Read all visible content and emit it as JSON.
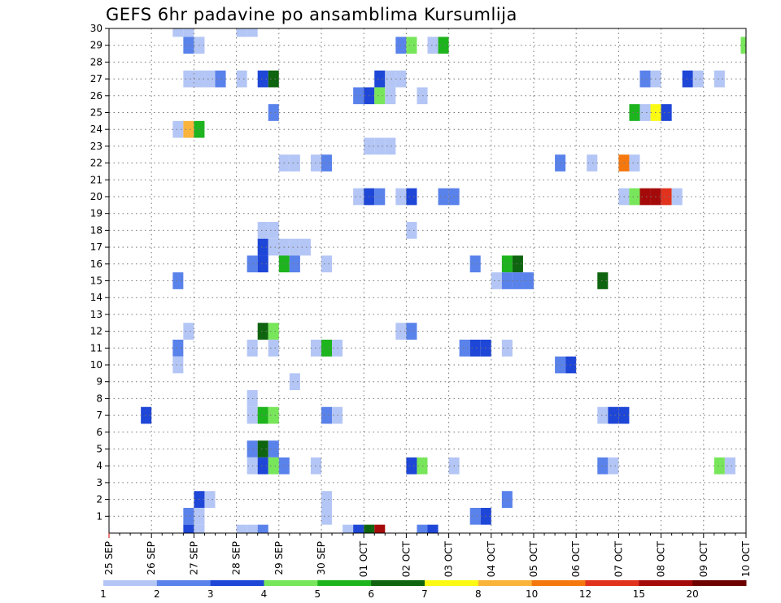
{
  "chart_data": {
    "type": "heatmap",
    "title": "GEFS 6hr padavine po ansamblima Kursumlija",
    "x_tick_labels": [
      "25 SEP",
      "26 SEP",
      "27 SEP",
      "28 SEP",
      "29 SEP",
      "30 SEP",
      "01 OCT",
      "02 OCT",
      "03 OCT",
      "04 OCT",
      "05 OCT",
      "06 OCT",
      "07 OCT",
      "08 OCT",
      "09 OCT",
      "10 OCT"
    ],
    "y_tick_labels": [
      "1",
      "2",
      "3",
      "4",
      "5",
      "6",
      "7",
      "8",
      "9",
      "10",
      "11",
      "12",
      "13",
      "14",
      "15",
      "16",
      "17",
      "18",
      "19",
      "20",
      "21",
      "22",
      "23",
      "24",
      "25",
      "26",
      "27",
      "28",
      "29",
      "30"
    ],
    "x_range": [
      0,
      60
    ],
    "y_range": [
      0,
      30
    ],
    "grid": true,
    "legend_position": "bottom",
    "colorbar": {
      "labels": [
        "1",
        "2",
        "3",
        "4",
        "5",
        "6",
        "7",
        "8",
        "10",
        "12",
        "15",
        "20"
      ],
      "colors": [
        "#b4c6f5",
        "#5a82eb",
        "#1e46d7",
        "#78e65a",
        "#1eb41e",
        "#0f640f",
        "#fafa14",
        "#fab43c",
        "#f5780f",
        "#e1321e",
        "#a50a0a",
        "#6e0000"
      ]
    },
    "cells": [
      [
        6.5,
        30,
        0
      ],
      [
        7.5,
        30,
        0
      ],
      [
        12.5,
        30,
        0
      ],
      [
        13.5,
        30,
        0
      ],
      [
        7.5,
        29,
        1
      ],
      [
        8.5,
        29,
        0
      ],
      [
        27.5,
        29,
        1
      ],
      [
        28.5,
        29,
        3
      ],
      [
        30.5,
        29,
        0
      ],
      [
        31.5,
        29,
        4
      ],
      [
        60,
        29,
        3
      ],
      [
        7.5,
        27,
        0
      ],
      [
        8.5,
        27,
        0
      ],
      [
        9.5,
        27,
        0
      ],
      [
        10.5,
        27,
        1
      ],
      [
        12.5,
        27,
        0
      ],
      [
        14.5,
        27,
        2
      ],
      [
        15.5,
        27,
        5
      ],
      [
        25.5,
        27,
        2
      ],
      [
        26.5,
        27,
        0
      ],
      [
        27.5,
        27,
        0
      ],
      [
        50.5,
        27,
        1
      ],
      [
        51.5,
        27,
        0
      ],
      [
        54.5,
        27,
        2
      ],
      [
        55.5,
        27,
        0
      ],
      [
        57.5,
        27,
        0
      ],
      [
        23.5,
        26,
        1
      ],
      [
        24.5,
        26,
        2
      ],
      [
        25.5,
        26,
        3
      ],
      [
        26.5,
        26,
        0
      ],
      [
        29.5,
        26,
        0
      ],
      [
        15.5,
        25,
        1
      ],
      [
        49.5,
        25,
        4
      ],
      [
        50.5,
        25,
        0
      ],
      [
        51.5,
        25,
        6
      ],
      [
        52.5,
        25,
        2
      ],
      [
        6.5,
        24,
        0
      ],
      [
        7.5,
        24,
        7
      ],
      [
        8.5,
        24,
        4
      ],
      [
        24.5,
        23,
        0
      ],
      [
        25.5,
        23,
        0
      ],
      [
        26.5,
        23,
        0
      ],
      [
        16.5,
        22,
        0
      ],
      [
        17.5,
        22,
        0
      ],
      [
        19.5,
        22,
        0
      ],
      [
        20.5,
        22,
        1
      ],
      [
        42.5,
        22,
        1
      ],
      [
        45.5,
        22,
        0
      ],
      [
        48.5,
        22,
        8
      ],
      [
        49.5,
        22,
        0
      ],
      [
        23.5,
        20,
        0
      ],
      [
        24.5,
        20,
        2
      ],
      [
        25.5,
        20,
        1
      ],
      [
        27.5,
        20,
        0
      ],
      [
        28.5,
        20,
        2
      ],
      [
        31.5,
        20,
        1
      ],
      [
        32.5,
        20,
        1
      ],
      [
        48.5,
        20,
        0
      ],
      [
        49.5,
        20,
        3
      ],
      [
        50.5,
        20,
        10
      ],
      [
        51.5,
        20,
        10
      ],
      [
        52.5,
        20,
        9
      ],
      [
        53.5,
        20,
        0
      ],
      [
        14.5,
        18,
        0
      ],
      [
        15.5,
        18,
        0
      ],
      [
        28.5,
        18,
        0
      ],
      [
        14.5,
        17,
        2
      ],
      [
        15.5,
        17,
        0
      ],
      [
        16.5,
        17,
        0
      ],
      [
        17.5,
        17,
        0
      ],
      [
        18.5,
        17,
        0
      ],
      [
        13.5,
        16,
        1
      ],
      [
        14.5,
        16,
        2
      ],
      [
        16.5,
        16,
        4
      ],
      [
        17.5,
        16,
        1
      ],
      [
        20.5,
        16,
        0
      ],
      [
        34.5,
        16,
        1
      ],
      [
        37.5,
        16,
        4
      ],
      [
        38.5,
        16,
        5
      ],
      [
        6.5,
        15,
        1
      ],
      [
        36.5,
        15,
        0
      ],
      [
        37.5,
        15,
        1
      ],
      [
        38.5,
        15,
        1
      ],
      [
        39.5,
        15,
        1
      ],
      [
        46.5,
        15,
        5
      ],
      [
        14.5,
        12,
        5
      ],
      [
        15.5,
        12,
        3
      ],
      [
        7.5,
        12,
        0
      ],
      [
        27.5,
        12,
        0
      ],
      [
        28.5,
        12,
        1
      ],
      [
        6.5,
        11,
        1
      ],
      [
        13.5,
        11,
        0
      ],
      [
        15.5,
        11,
        0
      ],
      [
        19.5,
        11,
        0
      ],
      [
        20.5,
        11,
        4
      ],
      [
        21.5,
        11,
        0
      ],
      [
        33.5,
        11,
        1
      ],
      [
        34.5,
        11,
        2
      ],
      [
        35.5,
        11,
        2
      ],
      [
        37.5,
        11,
        0
      ],
      [
        6.5,
        10,
        0
      ],
      [
        42.5,
        10,
        1
      ],
      [
        43.5,
        10,
        2
      ],
      [
        17.5,
        9,
        0
      ],
      [
        13.5,
        8,
        0
      ],
      [
        3.5,
        7,
        2
      ],
      [
        13.5,
        7,
        0
      ],
      [
        14.5,
        7,
        4
      ],
      [
        15.5,
        7,
        3
      ],
      [
        20.5,
        7,
        1
      ],
      [
        21.5,
        7,
        0
      ],
      [
        46.5,
        7,
        0
      ],
      [
        47.5,
        7,
        2
      ],
      [
        48.5,
        7,
        2
      ],
      [
        13.5,
        5,
        1
      ],
      [
        14.5,
        5,
        5
      ],
      [
        15.5,
        5,
        1
      ],
      [
        13.5,
        4,
        0
      ],
      [
        14.5,
        4,
        2
      ],
      [
        15.5,
        4,
        3
      ],
      [
        16.5,
        4,
        1
      ],
      [
        19.5,
        4,
        0
      ],
      [
        28.5,
        4,
        2
      ],
      [
        29.5,
        4,
        3
      ],
      [
        32.5,
        4,
        0
      ],
      [
        46.5,
        4,
        1
      ],
      [
        47.5,
        4,
        0
      ],
      [
        57.5,
        4,
        3
      ],
      [
        58.5,
        4,
        0
      ],
      [
        8.5,
        2,
        2
      ],
      [
        9.5,
        2,
        0
      ],
      [
        20.5,
        2,
        0
      ],
      [
        37.5,
        2,
        1
      ],
      [
        7.5,
        1,
        1
      ],
      [
        8.5,
        1,
        0
      ],
      [
        20.5,
        1,
        0
      ],
      [
        34.5,
        1,
        1
      ],
      [
        35.5,
        1,
        2
      ],
      [
        7.5,
        0,
        2
      ],
      [
        8.5,
        0,
        0
      ],
      [
        12.5,
        0,
        0
      ],
      [
        13.5,
        0,
        0
      ],
      [
        14.5,
        0,
        1
      ],
      [
        22.5,
        0,
        0
      ],
      [
        23.5,
        0,
        2
      ],
      [
        24.5,
        0,
        5
      ],
      [
        25.5,
        0,
        10
      ],
      [
        29.5,
        0,
        1
      ],
      [
        30.5,
        0,
        2
      ]
    ]
  }
}
